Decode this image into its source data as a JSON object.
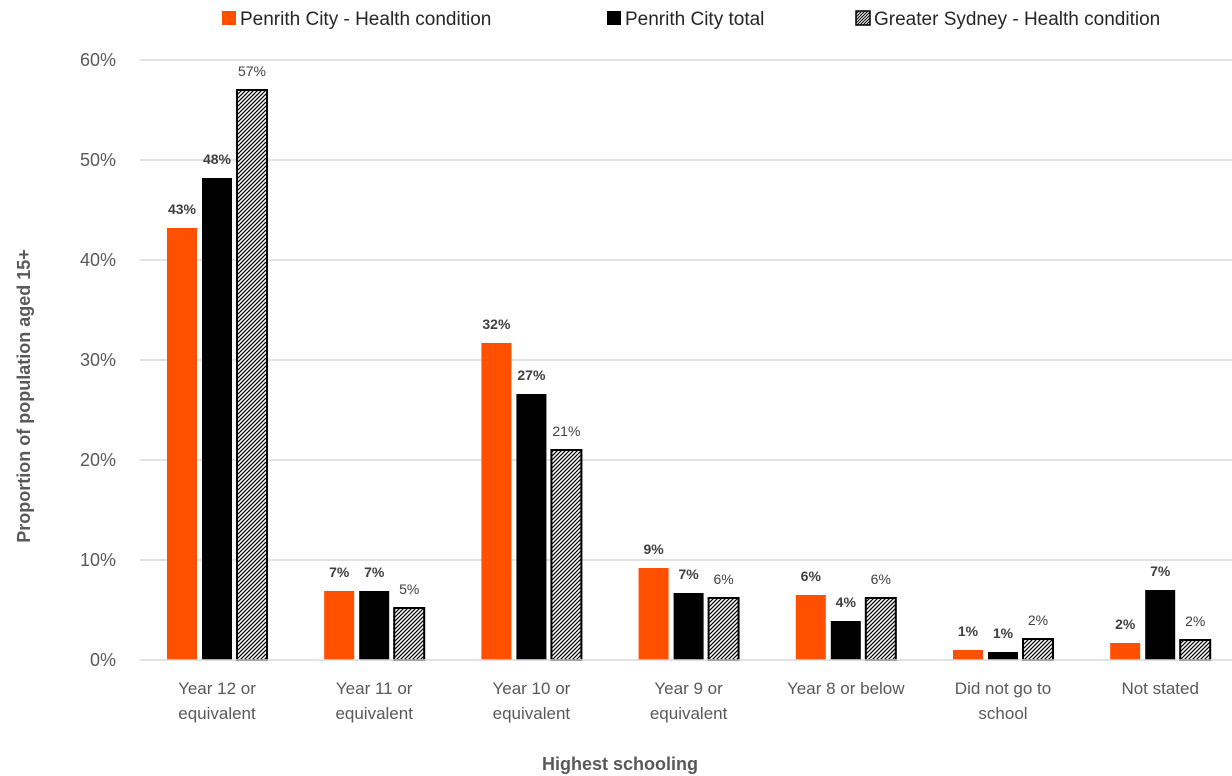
{
  "chart_data": {
    "type": "bar",
    "title": "",
    "xlabel": "Highest schooling",
    "ylabel": "Proportion of population aged 15+",
    "ylim": [
      0,
      60
    ],
    "yticks": [
      "0%",
      "10%",
      "20%",
      "30%",
      "40%",
      "50%",
      "60%"
    ],
    "grid": true,
    "legend_position": "top",
    "categories": [
      [
        "Year 12 or",
        "equivalent"
      ],
      [
        "Year 11 or",
        "equivalent"
      ],
      [
        "Year 10 or",
        "equivalent"
      ],
      [
        "Year 9 or",
        "equivalent"
      ],
      [
        "Year 8 or below"
      ],
      [
        "Did not go to",
        "school"
      ],
      [
        "Not stated"
      ]
    ],
    "series": [
      {
        "name": "Penrith City - Health condition",
        "color": "#ff5000",
        "pattern": "solid",
        "values": [
          43.2,
          6.9,
          31.7,
          9.2,
          6.5,
          1.0,
          1.7
        ],
        "labels": [
          "43%",
          "7%",
          "32%",
          "9%",
          "6%",
          "1%",
          "2%"
        ]
      },
      {
        "name": "Penrith City total",
        "color": "#000000",
        "pattern": "solid",
        "values": [
          48.2,
          6.9,
          26.6,
          6.7,
          3.9,
          0.8,
          7.0
        ],
        "labels": [
          "48%",
          "7%",
          "27%",
          "7%",
          "4%",
          "1%",
          "7%"
        ]
      },
      {
        "name": "Greater Sydney - Health condition",
        "color": "#000000",
        "pattern": "hatched",
        "values": [
          57.0,
          5.2,
          21.0,
          6.2,
          6.2,
          2.1,
          2.0
        ],
        "labels": [
          "57%",
          "5%",
          "21%",
          "6%",
          "6%",
          "2%",
          "2%"
        ]
      }
    ]
  }
}
